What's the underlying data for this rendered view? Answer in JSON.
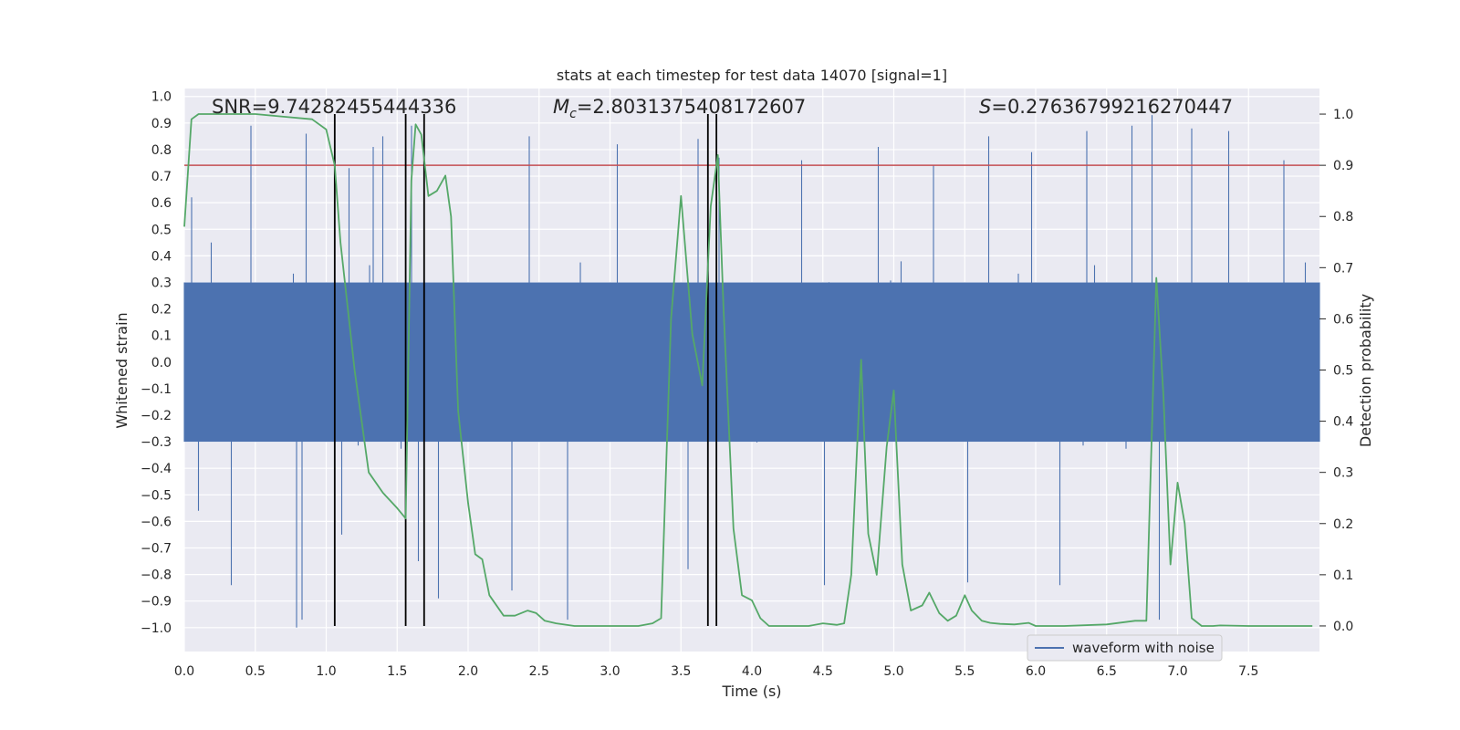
{
  "chart_data": {
    "type": "line",
    "title": "stats at each timestep for test data 14070 [signal=1]",
    "xlabel": "Time (s)",
    "ylabel": "Whitened strain",
    "y2label": "Detection probability",
    "xlim": [
      0.0,
      8.0
    ],
    "ylim": [
      -1.09,
      1.03
    ],
    "y2lim": [
      -0.05,
      1.05
    ],
    "x_ticks": [
      0.0,
      0.5,
      1.0,
      1.5,
      2.0,
      2.5,
      3.0,
      3.5,
      4.0,
      4.5,
      5.0,
      5.5,
      6.0,
      6.5,
      7.0,
      7.5
    ],
    "y_ticks": [
      -1.0,
      -0.9,
      -0.8,
      -0.7,
      -0.6,
      -0.5,
      -0.4,
      -0.3,
      -0.2,
      -0.1,
      0.0,
      0.1,
      0.2,
      0.3,
      0.4,
      0.5,
      0.6,
      0.7,
      0.8,
      0.9,
      1.0
    ],
    "y2_ticks": [
      0.0,
      0.1,
      0.2,
      0.3,
      0.4,
      0.5,
      0.6,
      0.7,
      0.8,
      0.9,
      1.0
    ],
    "grid": true,
    "legend": {
      "location": "lower-right",
      "entries": [
        "waveform with noise"
      ]
    },
    "annotations": {
      "snr": "SNR=9.74282455444336",
      "mc_symbol": "M",
      "mc_sub": "c",
      "mc_value": "=2.8031375408172607",
      "s_symbol": "S",
      "s_value": "=0.27636799216270447"
    },
    "threshold": {
      "axis": "y2",
      "value": 0.9
    },
    "vertical_markers": [
      1.06,
      1.56,
      1.69,
      3.69,
      3.75
    ],
    "waveform": {
      "name": "waveform with noise",
      "sample_rate": 2048,
      "duration": 8.0,
      "core_amplitude": 0.33,
      "spikes": [
        {
          "t": 0.05,
          "v": 0.62
        },
        {
          "t": 0.1,
          "v": -0.56
        },
        {
          "t": 0.19,
          "v": 0.45
        },
        {
          "t": 0.33,
          "v": -0.84
        },
        {
          "t": 0.47,
          "v": 0.89
        },
        {
          "t": 0.79,
          "v": -1.0
        },
        {
          "t": 0.83,
          "v": -0.97
        },
        {
          "t": 0.86,
          "v": 0.86
        },
        {
          "t": 1.11,
          "v": -0.65
        },
        {
          "t": 1.16,
          "v": 0.73
        },
        {
          "t": 1.33,
          "v": 0.81
        },
        {
          "t": 1.4,
          "v": 0.85
        },
        {
          "t": 1.6,
          "v": 0.89
        },
        {
          "t": 1.65,
          "v": -0.75
        },
        {
          "t": 1.79,
          "v": -0.89
        },
        {
          "t": 2.31,
          "v": -0.86
        },
        {
          "t": 2.43,
          "v": 0.85
        },
        {
          "t": 2.7,
          "v": -0.97
        },
        {
          "t": 3.05,
          "v": 0.82
        },
        {
          "t": 3.55,
          "v": -0.78
        },
        {
          "t": 3.62,
          "v": 0.84
        },
        {
          "t": 3.77,
          "v": 0.77
        },
        {
          "t": 4.35,
          "v": 0.76
        },
        {
          "t": 4.51,
          "v": -0.84
        },
        {
          "t": 4.89,
          "v": 0.81
        },
        {
          "t": 5.28,
          "v": 0.74
        },
        {
          "t": 5.52,
          "v": -0.83
        },
        {
          "t": 5.67,
          "v": 0.85
        },
        {
          "t": 5.97,
          "v": 0.79
        },
        {
          "t": 6.17,
          "v": -0.84
        },
        {
          "t": 6.36,
          "v": 0.87
        },
        {
          "t": 6.68,
          "v": 0.89
        },
        {
          "t": 6.82,
          "v": 0.93
        },
        {
          "t": 6.87,
          "v": -0.97
        },
        {
          "t": 7.1,
          "v": 0.88
        },
        {
          "t": 7.36,
          "v": 0.87
        },
        {
          "t": 7.75,
          "v": 0.76
        }
      ]
    },
    "probability": {
      "name": "detection probability",
      "x": [
        0.0,
        0.05,
        0.1,
        0.2,
        0.3,
        0.5,
        0.7,
        0.9,
        1.0,
        1.06,
        1.1,
        1.2,
        1.3,
        1.4,
        1.5,
        1.56,
        1.6,
        1.63,
        1.67,
        1.72,
        1.78,
        1.84,
        1.88,
        1.93,
        2.0,
        2.05,
        2.1,
        2.15,
        2.25,
        2.33,
        2.42,
        2.48,
        2.54,
        2.62,
        2.75,
        3.0,
        3.2,
        3.3,
        3.36,
        3.43,
        3.5,
        3.58,
        3.65,
        3.71,
        3.76,
        3.8,
        3.87,
        3.93,
        4.0,
        4.06,
        4.12,
        4.25,
        4.4,
        4.5,
        4.6,
        4.65,
        4.7,
        4.77,
        4.82,
        4.88,
        4.95,
        5.0,
        5.06,
        5.12,
        5.2,
        5.25,
        5.32,
        5.38,
        5.44,
        5.5,
        5.55,
        5.62,
        5.68,
        5.75,
        5.85,
        5.95,
        6.0,
        6.2,
        6.5,
        6.7,
        6.78,
        6.85,
        6.9,
        6.95,
        7.0,
        7.05,
        7.1,
        7.17,
        7.25,
        7.3,
        7.5,
        7.7,
        7.8,
        7.95
      ],
      "y": [
        0.78,
        0.99,
        1.0,
        1.0,
        1.0,
        1.0,
        0.995,
        0.99,
        0.97,
        0.9,
        0.75,
        0.5,
        0.3,
        0.26,
        0.23,
        0.21,
        0.87,
        0.98,
        0.96,
        0.84,
        0.85,
        0.88,
        0.8,
        0.42,
        0.24,
        0.14,
        0.13,
        0.06,
        0.02,
        0.02,
        0.03,
        0.025,
        0.01,
        0.005,
        0.0,
        0.0,
        0.0,
        0.005,
        0.015,
        0.6,
        0.84,
        0.57,
        0.47,
        0.82,
        0.92,
        0.62,
        0.19,
        0.06,
        0.05,
        0.015,
        0.0,
        0.0,
        0.0,
        0.005,
        0.002,
        0.005,
        0.1,
        0.52,
        0.18,
        0.1,
        0.35,
        0.46,
        0.12,
        0.03,
        0.04,
        0.065,
        0.025,
        0.01,
        0.02,
        0.06,
        0.03,
        0.01,
        0.006,
        0.004,
        0.003,
        0.006,
        0.0,
        0.0,
        0.003,
        0.01,
        0.01,
        0.68,
        0.45,
        0.12,
        0.28,
        0.2,
        0.015,
        0.0,
        0.0,
        0.001,
        0.0,
        0.0,
        0.0,
        0.0
      ]
    },
    "colors": {
      "background": "#eaeaf2",
      "grid": "#ffffff",
      "waveform": "#4c72b0",
      "probability": "#55a868",
      "threshold": "#c44e52",
      "markers": "#000000"
    }
  }
}
